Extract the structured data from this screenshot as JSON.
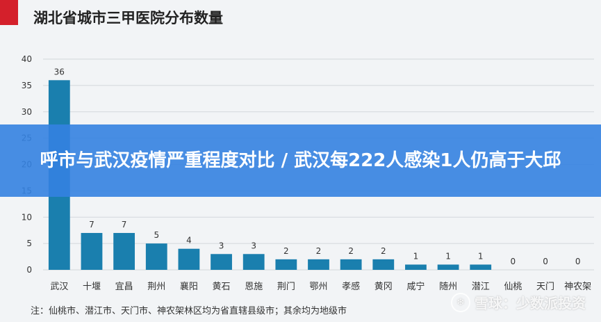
{
  "chart_data": {
    "type": "bar",
    "title": "湖北省城市三甲医院分布数量",
    "categories": [
      "武汉",
      "十堰",
      "宜昌",
      "荆州",
      "襄阳",
      "黄石",
      "恩施",
      "荆门",
      "鄂州",
      "孝感",
      "黄冈",
      "咸宁",
      "随州",
      "潜江",
      "仙桃",
      "天门",
      "神农架"
    ],
    "values": [
      36,
      7,
      7,
      5,
      4,
      3,
      3,
      2,
      2,
      2,
      2,
      1,
      1,
      1,
      0,
      0,
      0
    ],
    "ylim": [
      0,
      40
    ],
    "yticks": [
      0,
      5,
      10,
      15,
      20,
      25,
      30,
      35,
      40
    ],
    "grid": true,
    "xlabel": "",
    "ylabel": "",
    "colors": {
      "bar": "#1a7fae",
      "grid": "#d3d7db",
      "axis_text": "#333333",
      "value_text": "#333333"
    }
  },
  "note": "注：仙桃市、潜江市、天门市、神农架林区均为省直辖县级市；其余均为地级市",
  "banner": {
    "text": "呼市与武汉疫情严重程度对比 / 武汉每222人感染1人仍高于大邱"
  },
  "watermark": {
    "logo_icon": "snowball-icon",
    "text": "雪球：少数派投资"
  }
}
